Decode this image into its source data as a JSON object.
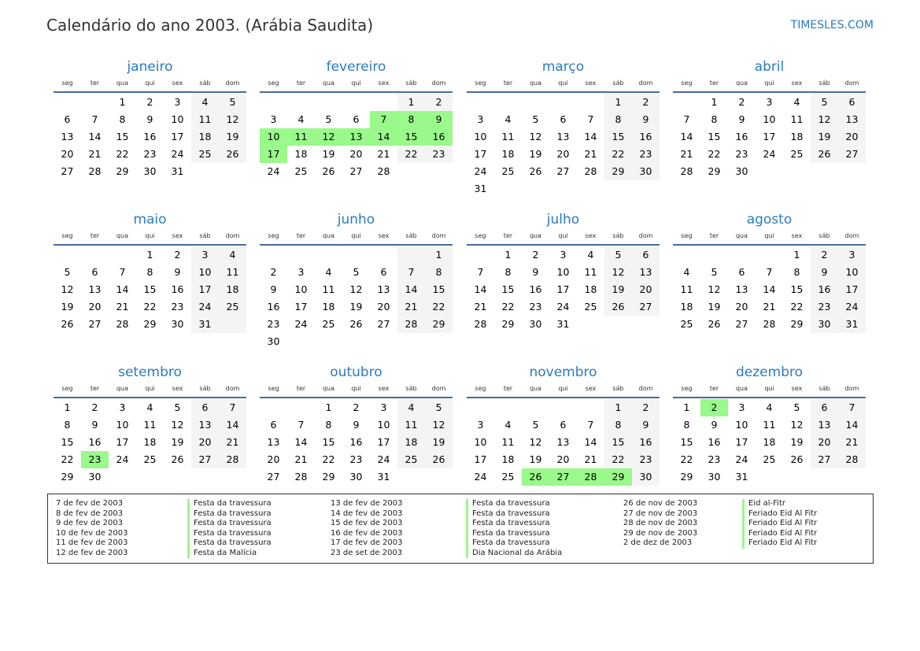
{
  "header": {
    "title": "Calendário do ano 2003. (Arábia Saudita)",
    "brand": "TIMESLES.COM"
  },
  "year": 2003,
  "weekdays": [
    "seg",
    "ter",
    "qua",
    "qui",
    "sex",
    "sáb",
    "dom"
  ],
  "months": [
    "janeiro",
    "fevereiro",
    "março",
    "abril",
    "maio",
    "junho",
    "julho",
    "agosto",
    "setembro",
    "outubro",
    "novembro",
    "dezembro"
  ],
  "colors": {
    "accent": "#2a7bc0",
    "holiday": "#99f98a",
    "weekend": "#f4f4f4"
  },
  "holidays": [
    {
      "date": "7 de fev de 2003",
      "name": "Festa da travessura",
      "m": 2,
      "d": 7
    },
    {
      "date": "8 de fev de 2003",
      "name": "Festa da travessura",
      "m": 2,
      "d": 8
    },
    {
      "date": "9 de fev de 2003",
      "name": "Festa da travessura",
      "m": 2,
      "d": 9
    },
    {
      "date": "10 de fev de 2003",
      "name": "Festa da travessura",
      "m": 2,
      "d": 10
    },
    {
      "date": "11 de fev de 2003",
      "name": "Festa da travessura",
      "m": 2,
      "d": 11
    },
    {
      "date": "12 de fev de 2003",
      "name": "Festa da Malícia",
      "m": 2,
      "d": 12
    },
    {
      "date": "13 de fev de 2003",
      "name": "Festa da travessura",
      "m": 2,
      "d": 13
    },
    {
      "date": "14 de fev de 2003",
      "name": "Festa da travessura",
      "m": 2,
      "d": 14
    },
    {
      "date": "15 de fev de 2003",
      "name": "Festa da travessura",
      "m": 2,
      "d": 15
    },
    {
      "date": "16 de fev de 2003",
      "name": "Festa da travessura",
      "m": 2,
      "d": 16
    },
    {
      "date": "17 de fev de 2003",
      "name": "Festa da travessura",
      "m": 2,
      "d": 17
    },
    {
      "date": "23 de set de 2003",
      "name": "Dia Nacional da Arábia",
      "m": 9,
      "d": 23
    },
    {
      "date": "26 de nov de 2003",
      "name": "Eid al-Fitr",
      "m": 11,
      "d": 26
    },
    {
      "date": "27 de nov de 2003",
      "name": "Feriado Eid Al Fitr",
      "m": 11,
      "d": 27
    },
    {
      "date": "28 de nov de 2003",
      "name": "Feriado Eid Al Fitr",
      "m": 11,
      "d": 28
    },
    {
      "date": "29 de nov de 2003",
      "name": "Feriado Eid Al Fitr",
      "m": 11,
      "d": 29
    },
    {
      "date": "2 de dez de 2003",
      "name": "Feriado Eid Al Fitr",
      "m": 12,
      "d": 2
    }
  ]
}
